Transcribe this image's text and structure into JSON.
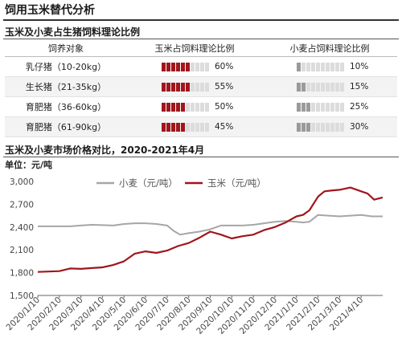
{
  "page_title": "饲用玉米替代分析",
  "table_section_title": "玉米及小麦占生猪饲料理论比例",
  "table": {
    "headers": [
      "饲养对象",
      "玉米占饲料理论比例",
      "小麦占饲料理论比例"
    ],
    "rows": [
      {
        "name": "乳仔猪（10-20kg）",
        "corn_pct": "60%",
        "corn": 0.6,
        "wheat_pct": "10%",
        "wheat": 0.1
      },
      {
        "name": "生长猪（21-35kg）",
        "corn_pct": "55%",
        "corn": 0.55,
        "wheat_pct": "15%",
        "wheat": 0.15
      },
      {
        "name": "育肥猪（36-60kg）",
        "corn_pct": "50%",
        "corn": 0.5,
        "wheat_pct": "25%",
        "wheat": 0.25
      },
      {
        "name": "育肥猪（61-90kg）",
        "corn_pct": "45%",
        "corn": 0.45,
        "wheat_pct": "30%",
        "wheat": 0.3
      }
    ],
    "corn_color": "#a0161b",
    "wheat_color": "#9a9a9a",
    "empty_color": "#dcdcdc"
  },
  "chart_section_title": "玉米及小麦市场价格对比，2020-2021年4月",
  "chart_data": {
    "type": "line",
    "unit_label": "单位：元/吨",
    "ylim": [
      1500,
      3000
    ],
    "yticks": [
      1500,
      1800,
      2100,
      2400,
      2700,
      3000
    ],
    "ytick_labels": [
      "1,500",
      "1,800",
      "2,100",
      "2,400",
      "2,700",
      "3,000"
    ],
    "x_tick_labels": [
      "2020/1/10",
      "2020/2/10",
      "2020/3/10",
      "2020/4/10",
      "2020/5/10",
      "2020/6/10",
      "2020/7/10",
      "2020/8/10",
      "2020/9/10",
      "2020/10/10",
      "2020/11/10",
      "2020/12/10",
      "2021/1/10",
      "2021/2/10",
      "2021/3/10",
      "2021/4/10"
    ],
    "x_range": [
      0,
      16
    ],
    "legend_position": "top-left",
    "grid": false,
    "series": [
      {
        "name": "小麦（元/吨）",
        "color": "#a6a6a6",
        "x": [
          0,
          0.5,
          1,
          1.5,
          2,
          2.5,
          3,
          3.5,
          4,
          4.5,
          5,
          5.5,
          6,
          6.3,
          6.6,
          7,
          7.5,
          8,
          8.5,
          9,
          9.5,
          10,
          10.5,
          11,
          11.5,
          12,
          12.3,
          12.6,
          13,
          13.5,
          14,
          14.5,
          15,
          15.5,
          16
        ],
        "values": [
          2410,
          2410,
          2410,
          2410,
          2420,
          2430,
          2425,
          2420,
          2440,
          2450,
          2450,
          2440,
          2420,
          2350,
          2300,
          2320,
          2340,
          2370,
          2420,
          2420,
          2420,
          2430,
          2450,
          2470,
          2480,
          2470,
          2460,
          2470,
          2560,
          2550,
          2540,
          2550,
          2560,
          2540,
          2540
        ]
      },
      {
        "name": "玉米（元/吨）",
        "color": "#a0161b",
        "x": [
          0,
          0.5,
          1,
          1.5,
          2,
          2.5,
          3,
          3.5,
          4,
          4.5,
          5,
          5.5,
          6,
          6.5,
          7,
          7.5,
          8,
          8.5,
          9,
          9.5,
          10,
          10.5,
          11,
          11.5,
          12,
          12.3,
          12.6,
          13,
          13.3,
          13.6,
          14,
          14.5,
          15,
          15.3,
          15.6,
          16
        ],
        "values": [
          1810,
          1815,
          1820,
          1855,
          1850,
          1860,
          1870,
          1900,
          1950,
          2050,
          2080,
          2060,
          2090,
          2150,
          2190,
          2260,
          2340,
          2300,
          2250,
          2280,
          2300,
          2360,
          2400,
          2460,
          2540,
          2560,
          2620,
          2800,
          2870,
          2880,
          2890,
          2920,
          2870,
          2840,
          2760,
          2790
        ]
      }
    ]
  }
}
